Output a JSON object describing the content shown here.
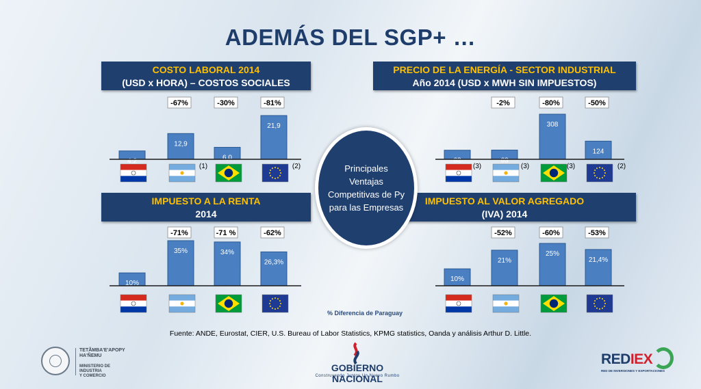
{
  "title": "ADEMÁS DEL SGP+ …",
  "center_text": "Principales Ventajas Competitivas de Py para las Empresas",
  "legend_note": "% Diferencia de Paraguay",
  "source": "Fuente: ANDE, Eurostat, CIER, U.S. Bureau of Labor Statistics, KPMG statistics, Oanda y análisis  Arthur D. Little.",
  "flags": [
    "paraguay-flag",
    "argentina-flag",
    "brazil-flag",
    "eu-flag"
  ],
  "colors": {
    "header_bg": "#1f3f6e",
    "header_title": "#ffc000",
    "bar": "#4a7fc1"
  },
  "logos": {
    "left_l1": "TETÃMBA'E'APOPY",
    "left_l2": "HA'ÑEMU",
    "left_l3": "MINISTERIO DE",
    "left_l4": "INDUSTRIA",
    "left_l5": "Y COMERCIO",
    "center_name": "GOBIERNO NACIONAL",
    "center_tag": "Construyendo Juntos Un Nuevo Rumbo",
    "right_name_a": "RED",
    "right_name_b": "IEX",
    "right_tag": "RED DE INVERSIONES Y EXPORTACIONES"
  },
  "chart_data": [
    {
      "type": "bar",
      "title": "COSTO LABORAL 2014",
      "subtitle": "(USD x HORA) – COSTOS SOCIALES",
      "categories": [
        "paraguay",
        "argentina",
        "brazil",
        "eu"
      ],
      "values": [
        4.2,
        12.9,
        6.0,
        21.9
      ],
      "value_labels": [
        "4,2",
        "12,9",
        "6,0",
        "21,9"
      ],
      "diff_labels": [
        "",
        "-67%",
        "-30%",
        "-81%"
      ],
      "notes": [
        "",
        "",
        "(1)",
        "(2)"
      ]
    },
    {
      "type": "bar",
      "title": "PRECIO DE LA ENERGÍA -  SECTOR INDUSTRIAL",
      "subtitle": "Año 2014 (USD x MWH SIN IMPUESTOS)",
      "categories": [
        "paraguay",
        "argentina",
        "brazil",
        "eu"
      ],
      "values": [
        62,
        63,
        308,
        124
      ],
      "value_labels": [
        "62",
        "63",
        "308",
        "124"
      ],
      "diff_labels": [
        "",
        "-2%",
        "-80%",
        "-50%"
      ],
      "notes": [
        "(3)",
        "(3)",
        "(3)",
        "(2)"
      ]
    },
    {
      "type": "bar",
      "title": "IMPUESTO A LA RENTA",
      "subtitle": "2014",
      "categories": [
        "paraguay",
        "argentina",
        "brazil",
        "eu"
      ],
      "values": [
        10,
        35,
        34,
        26.3
      ],
      "value_labels": [
        "10%",
        "35%",
        "34%",
        "26,3%"
      ],
      "diff_labels": [
        "",
        "-71%",
        "-71 %",
        "-62%"
      ],
      "notes": [
        "",
        "",
        "",
        ""
      ]
    },
    {
      "type": "bar",
      "title": "IMPUESTO AL VALOR AGREGADO",
      "subtitle": "(IVA) 2014",
      "categories": [
        "paraguay",
        "argentina",
        "brazil",
        "eu"
      ],
      "values": [
        10,
        21,
        25,
        21.4
      ],
      "value_labels": [
        "10%",
        "21%",
        "25%",
        "21,4%"
      ],
      "diff_labels": [
        "",
        "-52%",
        "-60%",
        "-53%"
      ],
      "notes": [
        "",
        "",
        "",
        ""
      ]
    }
  ]
}
